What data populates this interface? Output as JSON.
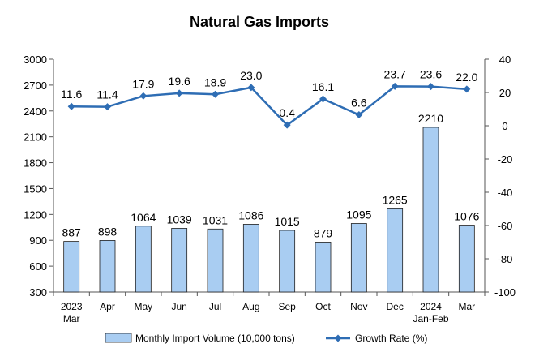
{
  "chart_data": {
    "type": "bar",
    "title": "Natural Gas Imports",
    "categories": [
      [
        "2023",
        "Mar"
      ],
      [
        "Apr"
      ],
      [
        "May"
      ],
      [
        "Jun"
      ],
      [
        "Jul"
      ],
      [
        "Aug"
      ],
      [
        "Sep"
      ],
      [
        "Oct"
      ],
      [
        "Nov"
      ],
      [
        "Dec"
      ],
      [
        "2024",
        "Jan-Feb"
      ],
      [
        "Mar"
      ]
    ],
    "series": [
      {
        "name": "Monthly Import Volume (10,000 tons)",
        "type": "bar",
        "axis": "left",
        "values": [
          887,
          898,
          1064,
          1039,
          1031,
          1086,
          1015,
          879,
          1095,
          1265,
          2210,
          1076
        ]
      },
      {
        "name": "Growth Rate (%)",
        "type": "line",
        "axis": "right",
        "values": [
          11.6,
          11.4,
          17.9,
          19.6,
          18.9,
          23.0,
          0.4,
          16.1,
          6.6,
          23.7,
          23.6,
          22.0
        ]
      }
    ],
    "y_left": {
      "min": 300,
      "max": 3000,
      "ticks": [
        300,
        600,
        900,
        1200,
        1500,
        1800,
        2100,
        2400,
        2700,
        3000
      ]
    },
    "y_right": {
      "min": -100,
      "max": 40,
      "ticks": [
        -100,
        -80,
        -60,
        -40,
        -20,
        0,
        20,
        40
      ]
    },
    "legend_position": "bottom",
    "grid": false,
    "colors": {
      "bar_fill": "#a9cdf2",
      "bar_stroke": "#1f1f1f",
      "line": "#2e6db4",
      "axis": "#555555"
    }
  }
}
